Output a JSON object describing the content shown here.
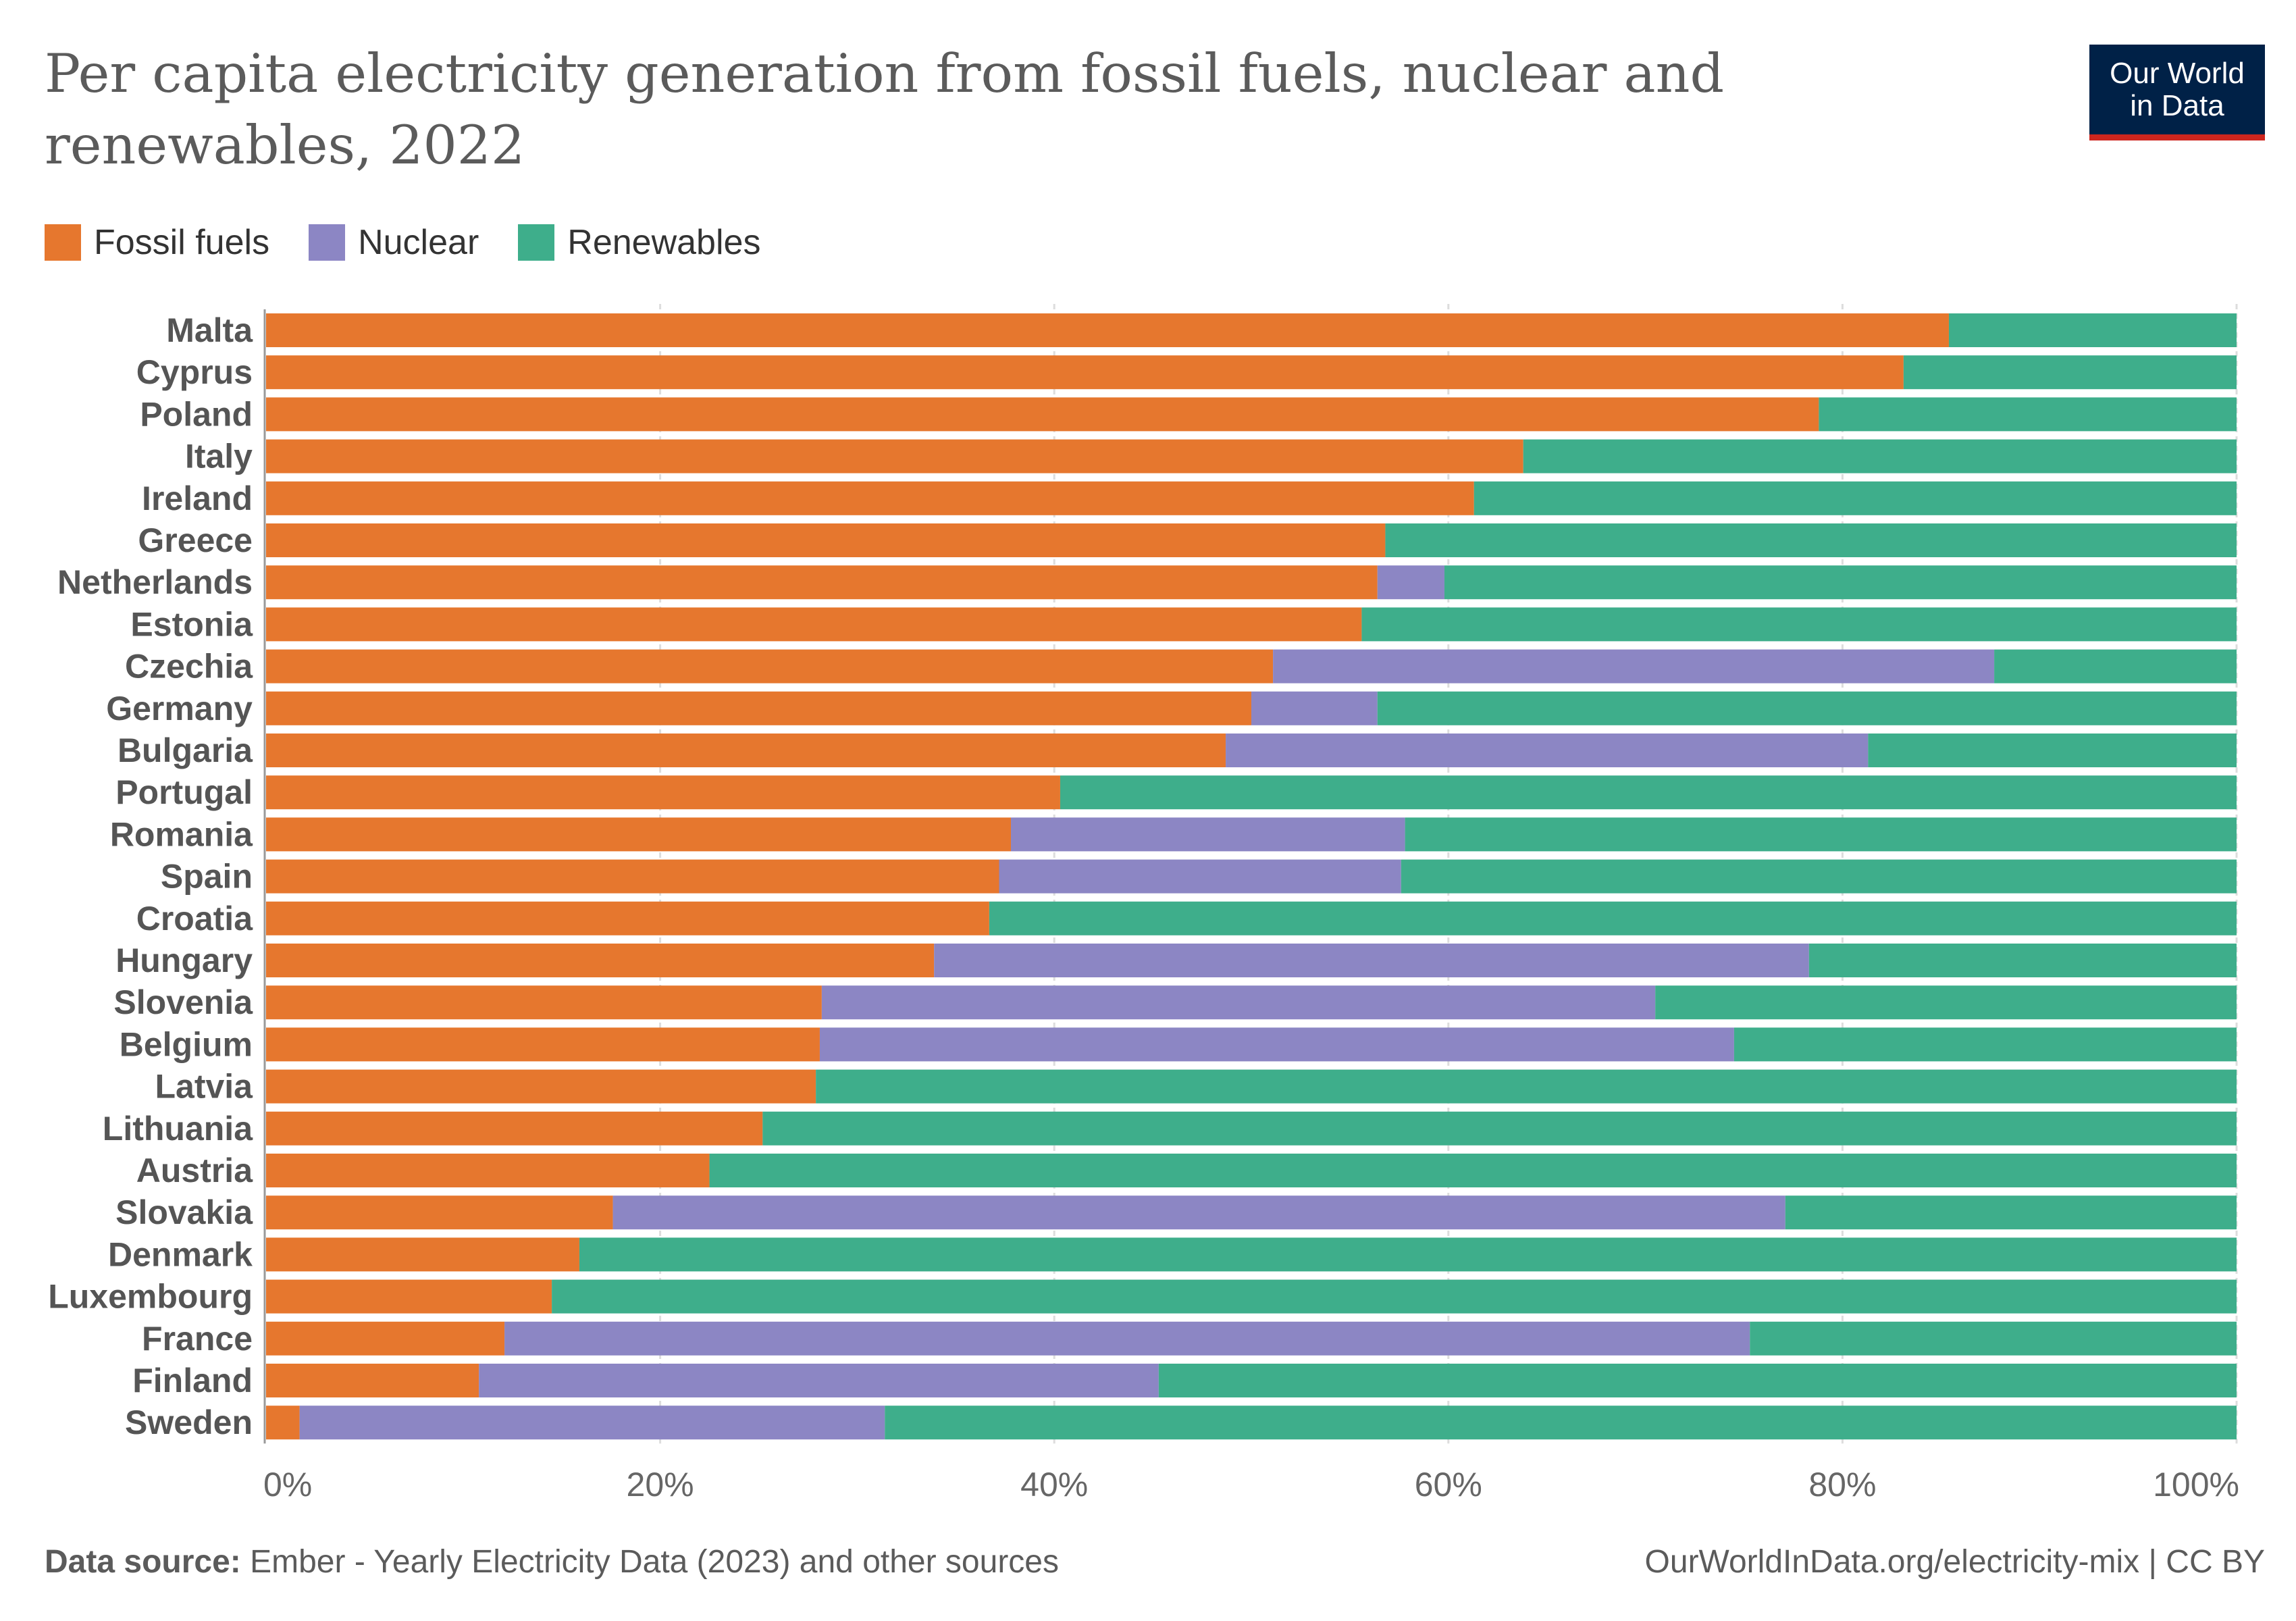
{
  "title": "Per capita electricity generation from fossil fuels, nuclear and renewables, 2022",
  "logo": {
    "line1": "Our World",
    "line2": "in Data",
    "bg_color": "#002147",
    "accent_color": "#ce261e"
  },
  "footer": {
    "source_label": "Data source:",
    "source_text": "Ember - Yearly Electricity Data (2023) and other sources",
    "url": "OurWorldInData.org/electricity-mix | CC BY"
  },
  "chart_data": {
    "type": "bar",
    "orientation": "horizontal",
    "stacked": true,
    "title": "Per capita electricity generation from fossil fuels, nuclear and renewables, 2022",
    "xlim": [
      0,
      100
    ],
    "x_ticks": [
      "0%",
      "20%",
      "40%",
      "60%",
      "80%",
      "100%"
    ],
    "grid": "vertical dashed",
    "legend_position": "top-left",
    "categories": [
      "Malta",
      "Cyprus",
      "Poland",
      "Italy",
      "Ireland",
      "Greece",
      "Netherlands",
      "Estonia",
      "Czechia",
      "Germany",
      "Bulgaria",
      "Portugal",
      "Romania",
      "Spain",
      "Croatia",
      "Hungary",
      "Slovenia",
      "Belgium",
      "Latvia",
      "Lithuania",
      "Austria",
      "Slovakia",
      "Denmark",
      "Luxembourg",
      "France",
      "Finland",
      "Sweden"
    ],
    "series": [
      {
        "name": "Fossil fuels",
        "color": "#e6772e",
        "values": [
          85.4,
          83.1,
          78.8,
          63.8,
          61.3,
          56.8,
          56.4,
          55.6,
          51.1,
          50.0,
          48.7,
          40.3,
          37.8,
          37.2,
          36.7,
          33.9,
          28.2,
          28.1,
          27.9,
          25.2,
          22.5,
          17.6,
          15.9,
          14.5,
          12.1,
          10.8,
          1.7
        ]
      },
      {
        "name": "Nuclear",
        "color": "#8c86c4",
        "values": [
          0,
          0,
          0,
          0,
          0,
          0,
          3.4,
          0,
          36.6,
          6.4,
          32.6,
          0,
          20.0,
          20.4,
          0,
          44.4,
          42.3,
          46.4,
          0,
          0,
          0,
          59.5,
          0,
          0,
          63.2,
          34.5,
          29.7
        ]
      },
      {
        "name": "Renewables",
        "color": "#3eae8b",
        "values": [
          14.6,
          16.9,
          21.2,
          36.2,
          38.7,
          43.2,
          40.2,
          44.4,
          12.3,
          43.6,
          18.7,
          59.7,
          42.2,
          42.4,
          63.3,
          21.7,
          29.5,
          25.5,
          72.1,
          74.8,
          77.5,
          22.9,
          84.1,
          85.5,
          24.7,
          54.7,
          68.6
        ]
      }
    ]
  }
}
